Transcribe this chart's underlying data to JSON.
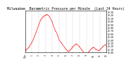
{
  "title": "Milwaukee  Barometric Pressure per Minute  (Last 24 Hours)",
  "title_fontsize": 3.5,
  "bg_color": "#ffffff",
  "plot_bg_color": "#ffffff",
  "line_color": "#ff0000",
  "grid_color": "#b0b0b0",
  "tick_color": "#000000",
  "ylim": [
    29.0,
    30.35
  ],
  "yticks": [
    29.0,
    29.1,
    29.2,
    29.3,
    29.4,
    29.5,
    29.6,
    29.7,
    29.8,
    29.9,
    30.0,
    30.1,
    30.2,
    30.3
  ],
  "ytick_labels": [
    "29.00",
    "29.10",
    "29.20",
    "29.30",
    "29.40",
    "29.50",
    "29.60",
    "29.70",
    "29.80",
    "29.90",
    "30.00",
    "30.10",
    "30.20",
    "30.30"
  ],
  "x_values": [
    0,
    1,
    2,
    3,
    4,
    5,
    6,
    7,
    8,
    9,
    10,
    11,
    12,
    13,
    14,
    15,
    16,
    17,
    18,
    19,
    20,
    21,
    22,
    23,
    24,
    25,
    26,
    27,
    28,
    29,
    30,
    31,
    32,
    33,
    34,
    35,
    36,
    37,
    38,
    39,
    40,
    41,
    42,
    43,
    44,
    45,
    46,
    47,
    48,
    49,
    50,
    51,
    52,
    53,
    54,
    55,
    56,
    57,
    58,
    59,
    60,
    61,
    62,
    63,
    64,
    65,
    66,
    67,
    68,
    69,
    70,
    71,
    72,
    73,
    74,
    75,
    76,
    77,
    78,
    79,
    80,
    81,
    82,
    83,
    84,
    85,
    86,
    87,
    88,
    89,
    90,
    91,
    92,
    93,
    94,
    95,
    96,
    97,
    98,
    99,
    100,
    101,
    102,
    103,
    104,
    105,
    106,
    107,
    108,
    109,
    110,
    111,
    112,
    113,
    114,
    115,
    116,
    117,
    118,
    119,
    120,
    121,
    122,
    123,
    124,
    125,
    126,
    127,
    128,
    129,
    130,
    131,
    132,
    133,
    134,
    135,
    136,
    137,
    138,
    139,
    140,
    141,
    142
  ],
  "y_values": [
    29.05,
    29.08,
    29.1,
    29.11,
    29.13,
    29.15,
    29.17,
    29.2,
    29.22,
    29.25,
    29.28,
    29.31,
    29.34,
    29.38,
    29.42,
    29.46,
    29.5,
    29.55,
    29.6,
    29.65,
    29.7,
    29.75,
    29.8,
    29.85,
    29.9,
    29.95,
    30.0,
    30.05,
    30.08,
    30.1,
    30.13,
    30.15,
    30.17,
    30.18,
    30.19,
    30.2,
    30.21,
    30.22,
    30.23,
    30.22,
    30.21,
    30.2,
    30.18,
    30.15,
    30.12,
    30.08,
    30.04,
    30.0,
    29.95,
    29.9,
    29.85,
    29.8,
    29.75,
    29.7,
    29.68,
    29.65,
    29.6,
    29.55,
    29.5,
    29.45,
    29.4,
    29.38,
    29.35,
    29.32,
    29.3,
    29.28,
    29.25,
    29.22,
    29.2,
    29.18,
    29.15,
    29.12,
    29.1,
    29.08,
    29.06,
    29.05,
    29.04,
    29.05,
    29.06,
    29.08,
    29.1,
    29.12,
    29.15,
    29.17,
    29.19,
    29.21,
    29.22,
    29.24,
    29.26,
    29.27,
    29.28,
    29.27,
    29.26,
    29.24,
    29.22,
    29.2,
    29.18,
    29.15,
    29.13,
    29.1,
    29.08,
    29.05,
    29.03,
    29.01,
    28.99,
    28.98,
    28.97,
    28.96,
    28.97,
    28.98,
    28.99,
    29.01,
    29.03,
    29.05,
    29.07,
    29.09,
    29.11,
    29.13,
    29.15,
    29.16,
    29.17,
    29.16,
    29.15,
    29.13,
    29.11,
    29.1,
    29.09,
    29.08,
    29.07,
    29.06,
    29.07,
    29.08,
    29.1,
    29.12,
    29.14,
    29.16,
    29.18,
    29.2,
    29.22,
    29.23,
    29.24,
    29.25,
    29.26
  ],
  "xtick_positions": [
    0,
    12,
    24,
    36,
    48,
    60,
    72,
    84,
    96,
    108,
    120,
    132,
    143
  ],
  "xtick_labels": [
    "12p",
    "1",
    "2",
    "3",
    "4",
    "5",
    "6",
    "7",
    "8",
    "9",
    "10",
    "11",
    "12"
  ],
  "marker_size": 0.7,
  "linewidth": 0.4
}
